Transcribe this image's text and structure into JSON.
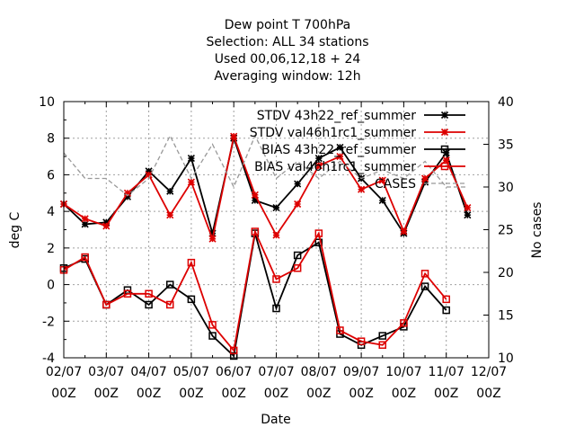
{
  "chart_data": {
    "type": "line",
    "title_lines": [
      "Dew point T 700hPa",
      "Selection: ALL     34 stations",
      "Used  00,06,12,18  + 24",
      "Averaging window: 12h"
    ],
    "xlabel": "Date",
    "ylabel": "deg C",
    "y2label": "No cases",
    "ylim": [
      -4,
      10
    ],
    "y2lim": [
      10,
      40
    ],
    "xlim": [
      0,
      10
    ],
    "grid": true,
    "legend_position": "top-right",
    "x_ticks": [
      {
        "x": 0,
        "line1": "02/07",
        "line2": "00Z"
      },
      {
        "x": 1,
        "line1": "03/07",
        "line2": "00Z"
      },
      {
        "x": 2,
        "line1": "04/07",
        "line2": "00Z"
      },
      {
        "x": 3,
        "line1": "05/07",
        "line2": "00Z"
      },
      {
        "x": 4,
        "line1": "06/07",
        "line2": "00Z"
      },
      {
        "x": 5,
        "line1": "07/07",
        "line2": "00Z"
      },
      {
        "x": 6,
        "line1": "08/07",
        "line2": "00Z"
      },
      {
        "x": 7,
        "line1": "09/07",
        "line2": "00Z"
      },
      {
        "x": 8,
        "line1": "10/07",
        "line2": "00Z"
      },
      {
        "x": 9,
        "line1": "11/07",
        "line2": "00Z"
      },
      {
        "x": 10,
        "line1": "12/07",
        "line2": "00Z"
      }
    ],
    "y_ticks": [
      {
        "v": -4,
        "label": "-4"
      },
      {
        "v": -2,
        "label": "-2"
      },
      {
        "v": 0,
        "label": "0"
      },
      {
        "v": 2,
        "label": "2"
      },
      {
        "v": 4,
        "label": "4"
      },
      {
        "v": 6,
        "label": "6"
      },
      {
        "v": 8,
        "label": "8"
      },
      {
        "v": 10,
        "label": "10"
      }
    ],
    "y2_ticks": [
      {
        "v": 10,
        "label": "10"
      },
      {
        "v": 15,
        "label": "15"
      },
      {
        "v": 20,
        "label": "20"
      },
      {
        "v": 25,
        "label": "25"
      },
      {
        "v": 30,
        "label": "30"
      },
      {
        "v": 35,
        "label": "35"
      },
      {
        "v": 40,
        "label": "40"
      }
    ],
    "x": [
      0,
      0.5,
      1,
      1.5,
      2,
      2.5,
      3,
      3.5,
      4,
      4.5,
      5,
      5.5,
      6,
      6.5,
      7,
      7.5,
      8,
      8.5,
      9,
      9.5
    ],
    "series": [
      {
        "name": "STDV 43h22_ref_summer",
        "color": "#000000",
        "marker": "star",
        "axis": "y",
        "values": [
          4.4,
          3.3,
          3.4,
          4.8,
          6.2,
          5.1,
          6.9,
          2.8,
          8.0,
          4.6,
          4.2,
          5.5,
          6.9,
          7.5,
          5.8,
          4.6,
          2.8,
          5.6,
          7.2,
          3.8
        ]
      },
      {
        "name": "STDV val46h1rc1_summer",
        "color": "#dd0000",
        "marker": "star",
        "axis": "y",
        "values": [
          4.4,
          3.6,
          3.2,
          5.0,
          6.0,
          3.8,
          5.6,
          2.5,
          8.1,
          4.9,
          2.7,
          4.4,
          6.5,
          7.0,
          5.2,
          5.7,
          2.9,
          5.8,
          6.8,
          4.2
        ]
      },
      {
        "name": "BIAS 43h22_ref_summer",
        "color": "#000000",
        "marker": "square",
        "axis": "y",
        "values": [
          0.9,
          1.4,
          -1.1,
          -0.3,
          -1.1,
          0.0,
          -0.8,
          -2.8,
          -3.9,
          2.8,
          -1.3,
          1.6,
          2.3,
          -2.7,
          -3.3,
          -2.8,
          -2.3,
          -0.1,
          -1.4,
          null
        ]
      },
      {
        "name": "BIAS val46h1rc1_summer",
        "color": "#dd0000",
        "marker": "square",
        "axis": "y",
        "values": [
          0.8,
          1.5,
          -1.1,
          -0.5,
          -0.5,
          -1.1,
          1.2,
          -2.2,
          -3.6,
          2.9,
          0.3,
          0.9,
          2.8,
          -2.5,
          -3.1,
          -3.3,
          -2.1,
          0.6,
          -0.8,
          null
        ]
      },
      {
        "name": "CASES",
        "color": "#999999",
        "marker": "none",
        "dashed": true,
        "axis": "y2",
        "values": [
          34,
          31,
          31,
          29,
          31,
          36,
          31,
          35,
          30,
          36,
          31,
          33,
          31,
          33,
          31,
          32,
          31,
          33,
          30,
          30
        ]
      }
    ],
    "legend": [
      {
        "label": "STDV 43h22_ref_summer",
        "series": 0
      },
      {
        "label": "STDV val46h1rc1_summer",
        "series": 1
      },
      {
        "label": "BIAS 43h22_ref_summer",
        "series": 2
      },
      {
        "label": "BIAS val46h1rc1_summer",
        "series": 3
      },
      {
        "label": "CASES",
        "series": 4
      }
    ]
  }
}
